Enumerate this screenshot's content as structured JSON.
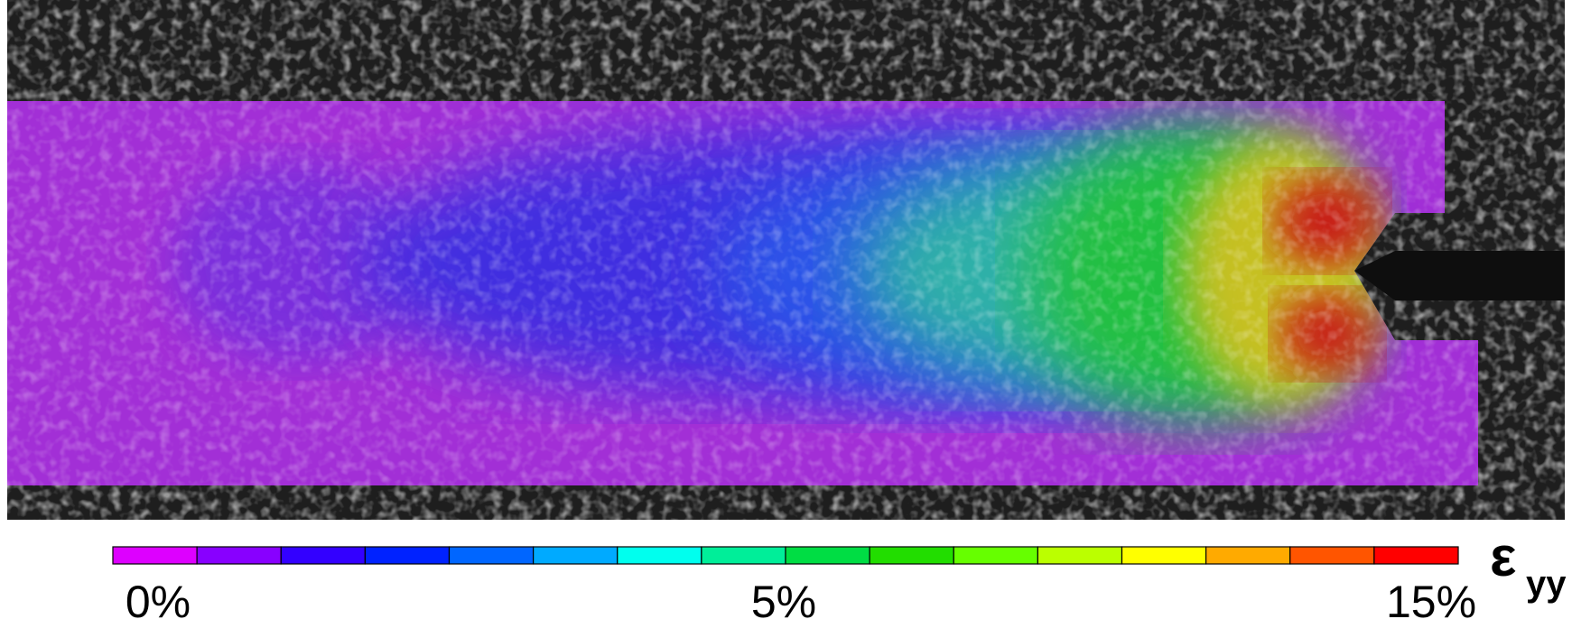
{
  "colorbar": {
    "colors": [
      "#dd00ff",
      "#8800ff",
      "#3300ff",
      "#0022ff",
      "#0066ff",
      "#00aaff",
      "#00ffee",
      "#00ee99",
      "#00dd44",
      "#22dd00",
      "#66ff00",
      "#bbff00",
      "#ffff00",
      "#ffaa00",
      "#ff5500",
      "#ff0000"
    ],
    "labels": [
      "0%",
      "5%",
      "15%"
    ]
  },
  "symbol": "ε",
  "subscript": "yy"
}
